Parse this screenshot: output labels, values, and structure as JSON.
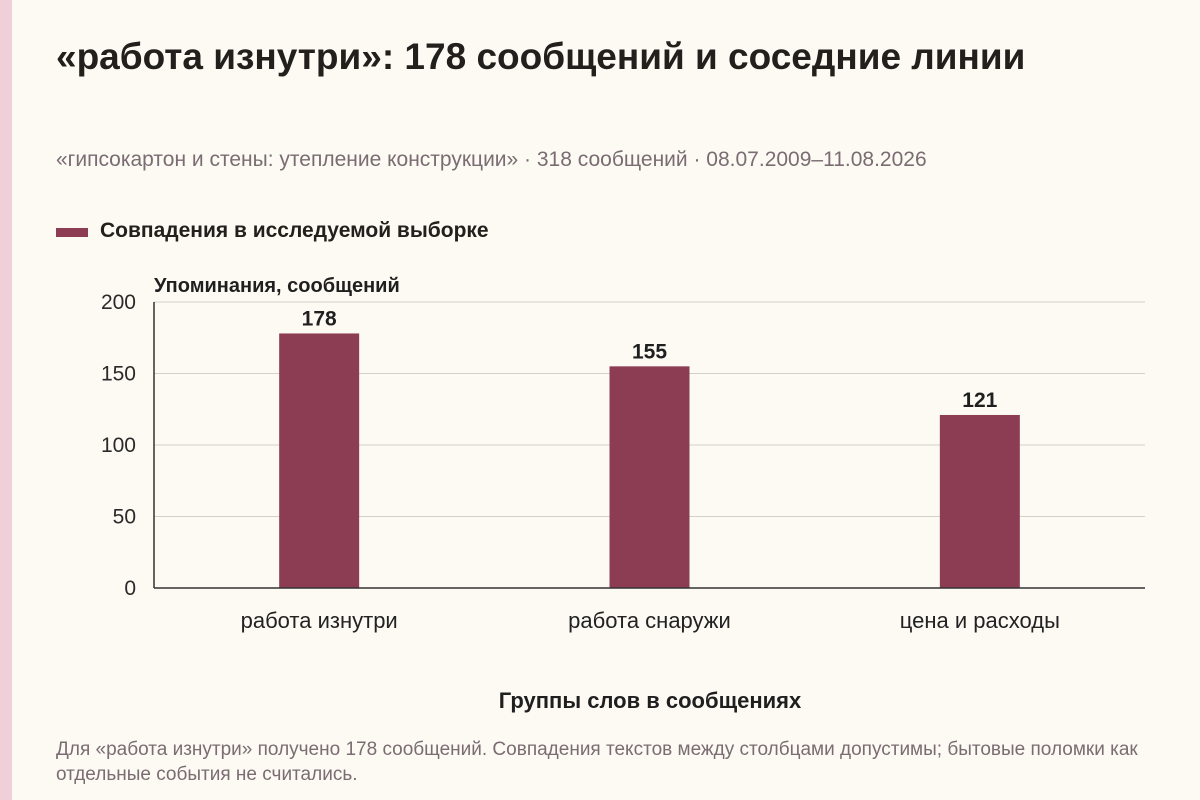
{
  "header": {
    "title": "«работа изнутри»: 178 сообщений и соседние линии",
    "subtitle": "«гипсокартон и стены: утепление конструкции» · 318 сообщений · 08.07.2009–11.08.2026"
  },
  "footnote": "Для «работа изнутри» получено 178 сообщений. Совпадения текстов между столбцами допустимы; бытовые поломки как отдельные события не считались.",
  "colors": {
    "bar": "#8c3d54",
    "accent_strip": "#efcfd8"
  },
  "chart_data": {
    "type": "bar",
    "categories": [
      "работа изнутри",
      "работа снаружи",
      "цена и расходы"
    ],
    "series": [
      {
        "name": "Совпадения в исследуемой выборке",
        "values": [
          178,
          155,
          121
        ]
      }
    ],
    "data_labels": [
      "178",
      "155",
      "121"
    ],
    "xlabel": "Группы слов в сообщениях",
    "ylabel": "Упоминания, сообщений",
    "ylim": [
      0,
      200
    ],
    "yticks": [
      0,
      50,
      100,
      150,
      200
    ],
    "grid": true,
    "legend": "top-left"
  }
}
